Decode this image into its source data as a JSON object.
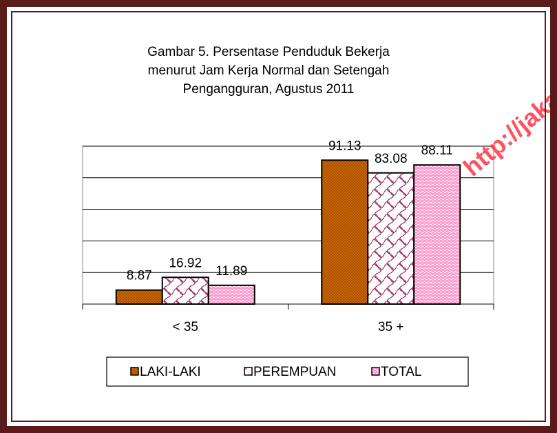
{
  "chart_data": {
    "type": "bar",
    "title": [
      "Gambar 5. Persentase Penduduk Bekerja",
      "menurut Jam Kerja Normal dan Setengah",
      "Pengangguran, Agustus 2011"
    ],
    "categories": [
      "< 35",
      "35 +"
    ],
    "series": [
      {
        "name": "LAKI-LAKI",
        "color": "#cc6600",
        "values": [
          8.87,
          91.13
        ]
      },
      {
        "name": "PEREMPUAN",
        "color": "#993366",
        "values": [
          16.92,
          83.08
        ]
      },
      {
        "name": "TOTAL",
        "color": "#ff99cc",
        "values": [
          11.89,
          88.11
        ]
      }
    ],
    "ylim": [
      0,
      100
    ],
    "yticks": [
      0,
      20,
      40,
      60,
      80,
      100
    ],
    "grid": true,
    "legend": "bottom",
    "watermark": "http://jaka"
  }
}
